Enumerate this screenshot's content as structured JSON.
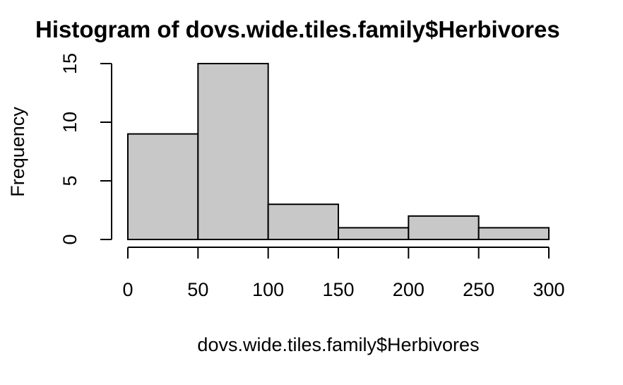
{
  "chart_data": {
    "type": "bar",
    "title": "Histogram of dovs.wide.tiles.family$Herbivores",
    "xlabel": "dovs.wide.tiles.family$Herbivores",
    "ylabel": "Frequency",
    "bins": [
      [
        0,
        50
      ],
      [
        50,
        100
      ],
      [
        100,
        150
      ],
      [
        150,
        200
      ],
      [
        200,
        250
      ],
      [
        250,
        300
      ]
    ],
    "values": [
      9,
      15,
      3,
      1,
      2,
      1
    ],
    "xlim": [
      0,
      300
    ],
    "ylim": [
      0,
      15
    ],
    "xticks": [
      0,
      50,
      100,
      150,
      200,
      250,
      300
    ],
    "yticks": [
      0,
      5,
      10,
      15
    ],
    "bar_color": "#c8c8c8",
    "grid": false,
    "legend": "none"
  }
}
